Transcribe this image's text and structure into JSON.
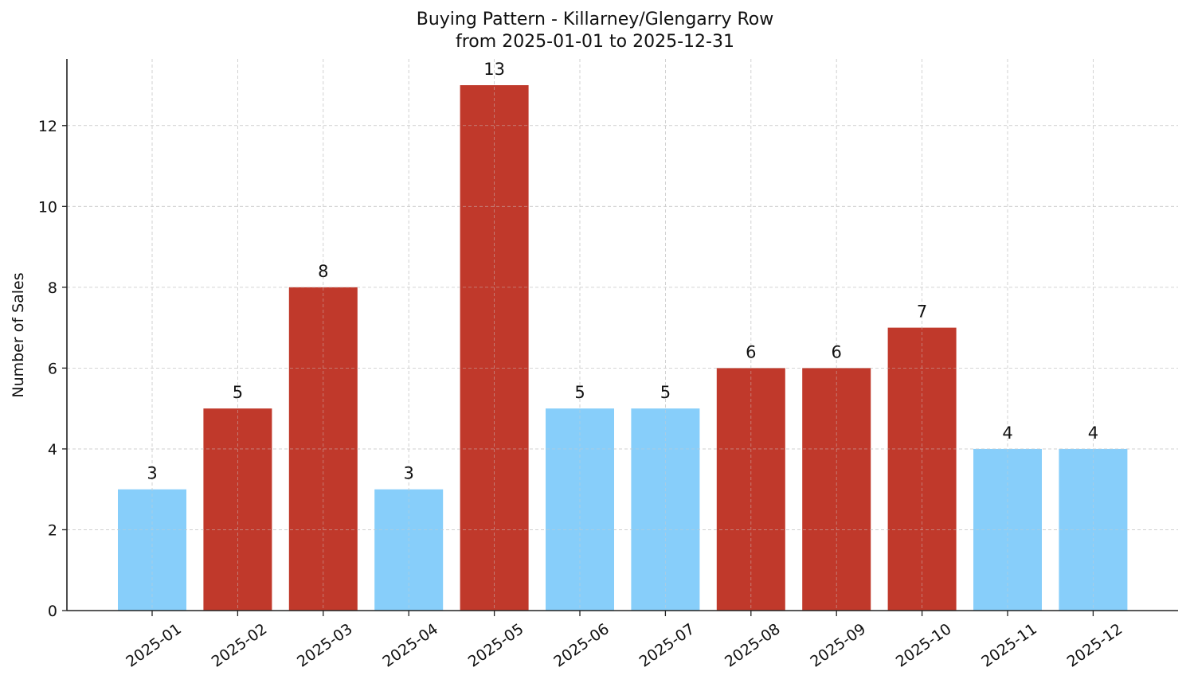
{
  "chart_data": {
    "type": "bar",
    "title": "Buying Pattern - Killarney/Glengarry Row",
    "subtitle": "from 2025-01-01 to 2025-12-31",
    "xlabel": "",
    "ylabel": "Number of Sales",
    "categories": [
      "2025-01",
      "2025-02",
      "2025-03",
      "2025-04",
      "2025-05",
      "2025-06",
      "2025-07",
      "2025-08",
      "2025-09",
      "2025-10",
      "2025-11",
      "2025-12"
    ],
    "values": [
      3,
      5,
      8,
      3,
      13,
      5,
      5,
      6,
      6,
      7,
      4,
      4
    ],
    "bar_colors": [
      "#87CEFA",
      "#C0392B",
      "#C0392B",
      "#87CEFA",
      "#C0392B",
      "#87CEFA",
      "#87CEFA",
      "#C0392B",
      "#C0392B",
      "#C0392B",
      "#87CEFA",
      "#87CEFA"
    ],
    "yticks": [
      0,
      2,
      4,
      6,
      8,
      10,
      12
    ],
    "ylim": [
      0,
      13.65
    ],
    "grid": true,
    "grid_style": "dashed",
    "data_labels": true,
    "legend": null,
    "xtick_rotation": 35
  },
  "colors": {
    "high": "#C0392B",
    "low": "#87CEFA",
    "grid": "#cccccc",
    "axis": "#222222"
  }
}
